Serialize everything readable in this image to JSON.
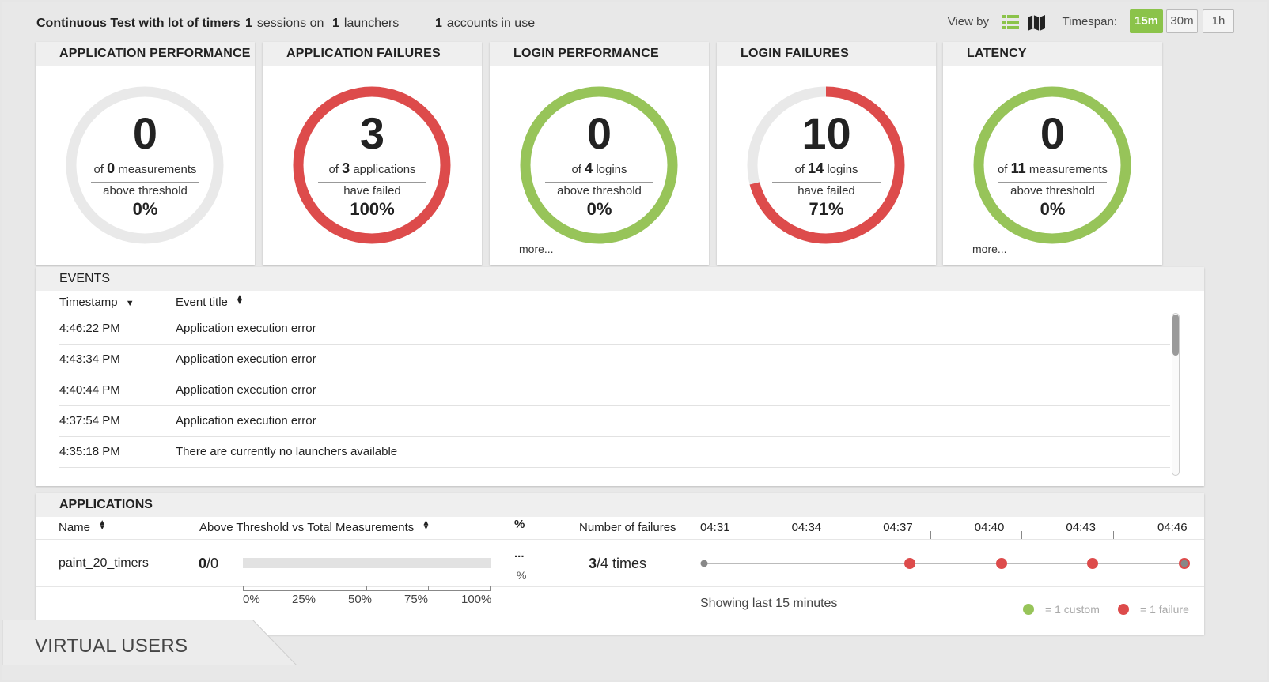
{
  "header": {
    "test_title": "Continuous Test with lot of timers",
    "sessions_count": "1",
    "sessions_label": "sessions on",
    "launchers_count": "1",
    "launchers_label": "launchers",
    "accounts_count": "1",
    "accounts_label": "accounts in use",
    "view_by_label": "View by",
    "view_icons": [
      "list-view-icon",
      "map-view-icon"
    ],
    "timespan_label": "Timespan:",
    "timespan_options": [
      "15m",
      "30m",
      "1h"
    ],
    "timespan_selected": "15m"
  },
  "cards": [
    {
      "title": "APPLICATION PERFORMANCE",
      "value": "0",
      "of_prefix": "of",
      "of_count": "0",
      "of_suffix": "measurements",
      "desc": "above threshold",
      "percent": "0%",
      "ring_fraction": 0,
      "ring_color": "#e9e9e9",
      "more": ""
    },
    {
      "title": "APPLICATION FAILURES",
      "value": "3",
      "of_prefix": "of",
      "of_count": "3",
      "of_suffix": "applications",
      "desc": "have failed",
      "percent": "100%",
      "ring_fraction": 1.0,
      "ring_color": "#dd4b4b",
      "more": ""
    },
    {
      "title": "LOGIN PERFORMANCE",
      "value": "0",
      "of_prefix": "of",
      "of_count": "4",
      "of_suffix": "logins",
      "desc": "above threshold",
      "percent": "0%",
      "ring_fraction": 1.0,
      "ring_color": "#97c459",
      "more": "more..."
    },
    {
      "title": "LOGIN FAILURES",
      "value": "10",
      "of_prefix": "of",
      "of_count": "14",
      "of_suffix": "logins",
      "desc": "have failed",
      "percent": "71%",
      "ring_fraction": 0.71,
      "ring_color": "#dd4b4b",
      "more": ""
    },
    {
      "title": "LATENCY",
      "value": "0",
      "of_prefix": "of",
      "of_count": "11",
      "of_suffix": "measurements",
      "desc": "above threshold",
      "percent": "0%",
      "ring_fraction": 1.0,
      "ring_color": "#97c459",
      "more": "more..."
    }
  ],
  "events": {
    "title": "EVENTS",
    "col_timestamp": "Timestamp",
    "col_title": "Event title",
    "rows": [
      {
        "time": "4:46:22 PM",
        "title": "Application execution error"
      },
      {
        "time": "4:43:34 PM",
        "title": "Application execution error"
      },
      {
        "time": "4:40:44 PM",
        "title": "Application execution error"
      },
      {
        "time": "4:37:54 PM",
        "title": "Application execution error"
      },
      {
        "time": "4:35:18 PM",
        "title": "There are currently no launchers available"
      }
    ]
  },
  "applications": {
    "title": "APPLICATIONS",
    "col_name": "Name",
    "col_threshold": "Above Threshold vs Total Measurements",
    "col_percent": "%",
    "col_failures": "Number of failures",
    "times": [
      "04:31",
      "04:34",
      "04:37",
      "04:40",
      "04:43",
      "04:46"
    ],
    "rows": [
      {
        "name": "paint_20_timers",
        "above": "0",
        "total": "/0",
        "percent_top": "...",
        "percent_bottom": "%",
        "fail_count": "3",
        "fail_total": "/4 times",
        "bar_fraction": 0
      }
    ],
    "axis_labels": [
      "0%",
      "25%",
      "50%",
      "75%",
      "100%"
    ],
    "showing_label": "Showing last 15 minutes",
    "legend_custom": "= 1 custom",
    "legend_failure": "= 1 failure",
    "legend_custom_color": "#97c459",
    "legend_failure_color": "#dd4b4b"
  },
  "footer_tab": "VIRTUAL USERS"
}
